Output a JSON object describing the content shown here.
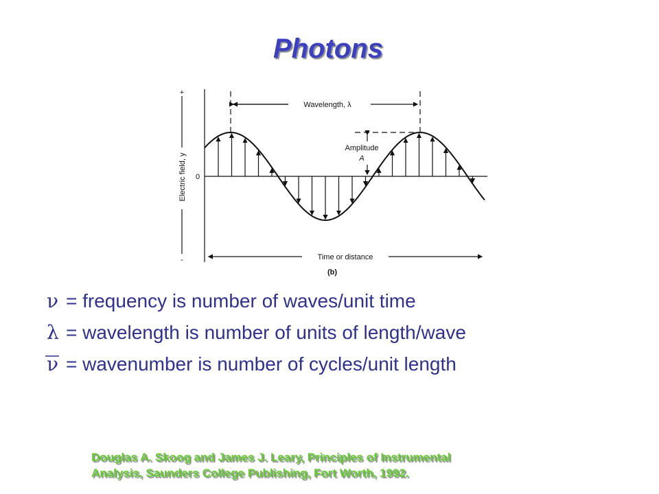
{
  "title": "Photons",
  "figure": {
    "wavelength_label": "Wavelength, λ",
    "amplitude_label": "Amplitude",
    "amplitude_symbol": "A",
    "y_axis_label": "Electric field, y",
    "zero_label": "0",
    "plus_label": "+",
    "minus_label": "-",
    "x_axis_label": "Time or distance",
    "panel_label": "(b)"
  },
  "definitions": [
    {
      "symbol": "ν",
      "text": "= frequency is number of waves/unit  time"
    },
    {
      "symbol": "λ",
      "text": "= wavelength  is number of units of length/wave"
    },
    {
      "symbol": "ν",
      "text": "= wavenumber  is number of cycles/unit  length"
    }
  ],
  "citation": [
    "Douglas A. Skoog and James J. Leary, Principles of Instrumental",
    "Analysis, Saunders College Publishing, Fort Worth, 1992."
  ]
}
